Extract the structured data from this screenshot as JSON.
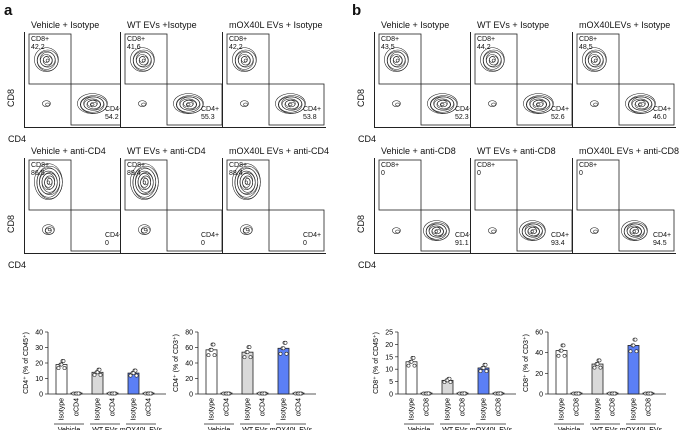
{
  "panels": {
    "a": {
      "letter": "a",
      "row1": [
        {
          "title": "Vehicle + Isotype",
          "cd8_label": "CD8+",
          "cd8_value": "42.2",
          "cd4_label": "CD4+",
          "cd4_value": "54.2"
        },
        {
          "title": "WT EVs +Isotype",
          "cd8_label": "CD8+",
          "cd8_value": "41.6",
          "cd4_label": "CD4+",
          "cd4_value": "55.3"
        },
        {
          "title": "mOX40L EVs + Isotype",
          "cd8_label": "CD8+",
          "cd8_value": "42.2",
          "cd4_label": "CD4+",
          "cd4_value": "53.8"
        }
      ],
      "row2": [
        {
          "title": "Vehicle + anti-CD4",
          "cd8_label": "CD8+",
          "cd8_value": "86.5",
          "cd4_label": "CD4+",
          "cd4_value": "0"
        },
        {
          "title": "WT EVs + anti-CD4",
          "cd8_label": "CD8+",
          "cd8_value": "89.4",
          "cd4_label": "CD4+",
          "cd4_value": "0"
        },
        {
          "title": "mOX40L EVs + anti-CD4",
          "cd8_label": "CD8+",
          "cd8_value": "88.4",
          "cd4_label": "CD4+",
          "cd4_value": "0"
        }
      ],
      "y_axis": "CD8",
      "x_axis": "CD4"
    },
    "b": {
      "letter": "b",
      "row1": [
        {
          "title": "Vehicle + Isotype",
          "cd8_label": "CD8+",
          "cd8_value": "43.5",
          "cd4_label": "CD4+",
          "cd4_value": "52.3"
        },
        {
          "title": "WT EVs + Isotype",
          "cd8_label": "CD8+",
          "cd8_value": "44.2",
          "cd4_label": "CD4+",
          "cd4_value": "52.6"
        },
        {
          "title": "mOX40LEVs + Isotype",
          "cd8_label": "CD8+",
          "cd8_value": "48.5",
          "cd4_label": "CD4+",
          "cd4_value": "46.0"
        }
      ],
      "row2": [
        {
          "title": "Vehicle + anti-CD8",
          "cd8_label": "CD8+",
          "cd8_value": "0",
          "cd4_label": "CD4+",
          "cd4_value": "91.1"
        },
        {
          "title": "WT EVs + anti-CD8",
          "cd8_label": "CD8+",
          "cd8_value": "0",
          "cd4_label": "CD4+",
          "cd4_value": "93.4"
        },
        {
          "title": "mOX40L EVs + anti-CD8",
          "cd8_label": "CD8+",
          "cd8_value": "0",
          "cd4_label": "CD4+",
          "cd4_value": "94.5"
        }
      ],
      "y_axis": "CD8",
      "x_axis": "CD4"
    }
  },
  "colors": {
    "vehicle": "#ffffff",
    "wt": "#d9d9d9",
    "mox40l": "#5b7ff5",
    "outline": "#222222"
  },
  "chart_data": [
    {
      "type": "bar",
      "ylabel": "CD4⁺ (% of CD45⁺)",
      "ylim": [
        0,
        40
      ],
      "yticks": [
        0,
        10,
        20,
        30,
        40
      ],
      "categories": [
        "Isotype",
        "αCD4",
        "Isotype",
        "αCD4",
        "Isotype",
        "αCD4"
      ],
      "groups": [
        "Vehicle",
        "WT EVs",
        "mOX40L EVs"
      ],
      "values": [
        19,
        0.3,
        14,
        0.3,
        13.5,
        0.3
      ]
    },
    {
      "type": "bar",
      "ylabel": "CD4⁺ (% of CD3⁺)",
      "ylim": [
        0,
        80
      ],
      "yticks": [
        0,
        20,
        40,
        60,
        80
      ],
      "categories": [
        "Isotype",
        "αCD4",
        "Isotype",
        "αCD4",
        "Isotype",
        "αCD4"
      ],
      "groups": [
        "Vehicle",
        "WT EVs",
        "mOX40L EVs"
      ],
      "values": [
        57,
        0.5,
        54,
        0.5,
        59,
        0.5
      ]
    },
    {
      "type": "bar",
      "ylabel": "CD8⁺ (% of CD45⁺)",
      "ylim": [
        0,
        25
      ],
      "yticks": [
        0,
        5,
        10,
        15,
        20,
        25
      ],
      "categories": [
        "Isotype",
        "αCD8",
        "Isotype",
        "αCD8",
        "Isotype",
        "αCD8"
      ],
      "groups": [
        "Vehicle",
        "WT EVs",
        "mOX40L EVs"
      ],
      "values": [
        13,
        0.2,
        5.5,
        0.2,
        10.5,
        0.2
      ]
    },
    {
      "type": "bar",
      "ylabel": "CD8⁺ (% of CD3⁺)",
      "ylim": [
        0,
        60
      ],
      "yticks": [
        0,
        20,
        40,
        60
      ],
      "categories": [
        "Isotype",
        "αCD8",
        "Isotype",
        "αCD8",
        "Isotype",
        "αCD8"
      ],
      "groups": [
        "Vehicle",
        "WT EVs",
        "mOX40L EVs"
      ],
      "values": [
        42,
        0.3,
        29,
        0.3,
        47,
        0.3
      ]
    }
  ]
}
